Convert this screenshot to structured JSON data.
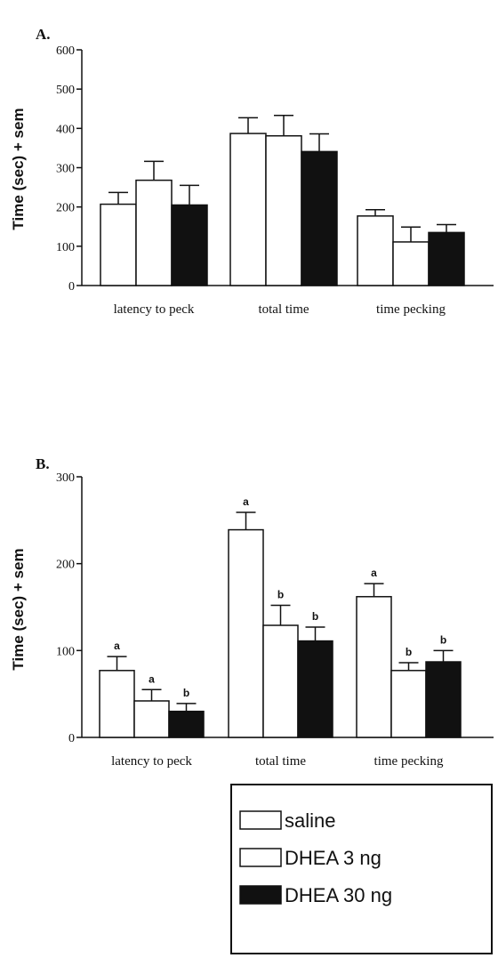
{
  "colors": {
    "saline": "#ffffff",
    "dhea3": "#ffffff",
    "dhea30": "#111111"
  },
  "legend": {
    "entries": [
      {
        "label": "saline",
        "fill": "#ffffff"
      },
      {
        "label": "DHEA 3 ng",
        "fill": "#ffffff"
      },
      {
        "label": "DHEA 30 ng",
        "fill": "#111111"
      }
    ]
  },
  "chart_data": [
    {
      "panel": "A.",
      "type": "bar",
      "ylabel": "Time (sec) + sem",
      "ylim": [
        0,
        600
      ],
      "yticks": [
        0,
        100,
        200,
        300,
        400,
        500,
        600
      ],
      "categories": [
        "latency to peck",
        "total time",
        "time pecking"
      ],
      "series": [
        {
          "name": "saline",
          "values": [
            207,
            387,
            177
          ],
          "errors": [
            30,
            40,
            16
          ]
        },
        {
          "name": "DHEA 3 ng",
          "values": [
            268,
            381,
            111
          ],
          "errors": [
            48,
            52,
            38
          ]
        },
        {
          "name": "DHEA 30 ng",
          "values": [
            205,
            341,
            135
          ],
          "errors": [
            50,
            45,
            20
          ]
        }
      ]
    },
    {
      "panel": "B.",
      "type": "bar",
      "ylabel": "Time (sec) + sem",
      "ylim": [
        0,
        300
      ],
      "yticks": [
        0,
        100,
        200,
        300
      ],
      "categories": [
        "latency to peck",
        "total time",
        "time  pecking"
      ],
      "series": [
        {
          "name": "saline",
          "values": [
            77,
            239,
            162
          ],
          "errors": [
            16,
            20,
            15
          ],
          "sig": [
            "a",
            "a",
            "a"
          ]
        },
        {
          "name": "DHEA 3 ng",
          "values": [
            42,
            129,
            77
          ],
          "errors": [
            13,
            23,
            9
          ],
          "sig": [
            "a",
            "b",
            "b"
          ]
        },
        {
          "name": "DHEA 30 ng",
          "values": [
            30,
            111,
            87
          ],
          "errors": [
            9,
            16,
            13
          ],
          "sig": [
            "b",
            "b",
            "b"
          ]
        }
      ]
    }
  ]
}
